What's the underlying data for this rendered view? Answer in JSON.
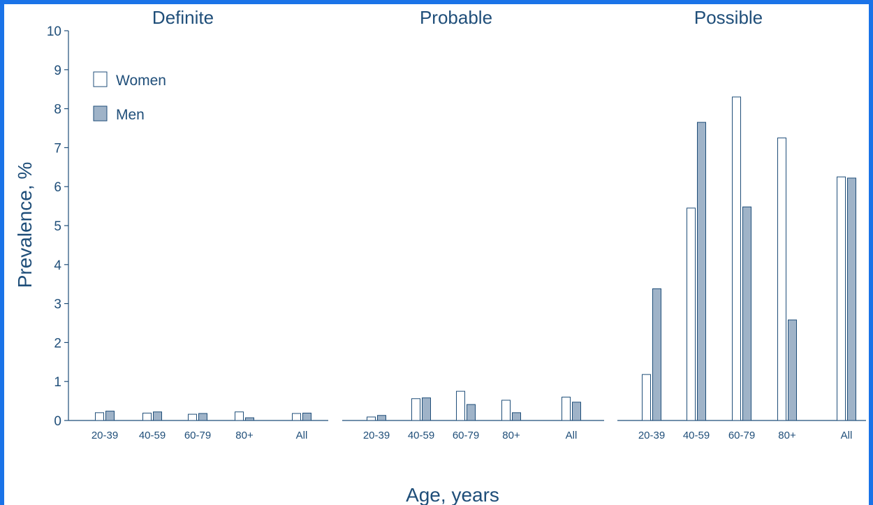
{
  "chart_data": {
    "type": "bar",
    "ylabel": "Prevalence, %",
    "xlabel": "Age, years",
    "ylim": [
      0,
      10
    ],
    "yticks": [
      0,
      1,
      2,
      3,
      4,
      5,
      6,
      7,
      8,
      9,
      10
    ],
    "grid": false,
    "legend": {
      "placement": "top-left",
      "entries": [
        "Women",
        "Men"
      ]
    },
    "colors": {
      "Women": "#ffffff",
      "Men": "#9fb3c8",
      "stroke": "#1f4e79",
      "text": "#1f4e79",
      "frame": "#1a73e8"
    },
    "categories": [
      "20-39",
      "40-59",
      "60-79",
      "80+",
      "All"
    ],
    "panels": [
      {
        "title": "Definite",
        "series": [
          {
            "name": "Women",
            "values": [
              0.2,
              0.19,
              0.16,
              0.22,
              0.18
            ]
          },
          {
            "name": "Men",
            "values": [
              0.24,
              0.22,
              0.18,
              0.07,
              0.19
            ]
          }
        ]
      },
      {
        "title": "Probable",
        "series": [
          {
            "name": "Women",
            "values": [
              0.09,
              0.56,
              0.75,
              0.52,
              0.6
            ]
          },
          {
            "name": "Men",
            "values": [
              0.13,
              0.58,
              0.41,
              0.2,
              0.47
            ]
          }
        ]
      },
      {
        "title": "Possible",
        "series": [
          {
            "name": "Women",
            "values": [
              1.18,
              5.45,
              8.3,
              7.25,
              6.25
            ]
          },
          {
            "name": "Men",
            "values": [
              3.38,
              7.65,
              5.48,
              2.58,
              6.22
            ]
          }
        ]
      }
    ]
  }
}
